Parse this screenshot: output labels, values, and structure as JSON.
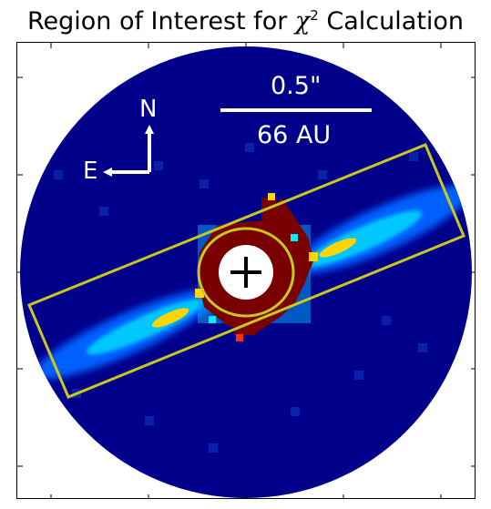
{
  "figure": {
    "title_prefix": "Region of Interest for ",
    "title_symbol": "χ",
    "title_exponent": "2",
    "title_suffix": " Calculation"
  },
  "compass": {
    "north": "N",
    "east": "E"
  },
  "scale_bar": {
    "angular": "0.5\"",
    "physical": "66 AU"
  },
  "colors": {
    "background": "#00008b",
    "disk_core": "#0072ff",
    "disk_mid": "#00d0ff",
    "disk_peak": "#ffd400",
    "inner_red": "#7a0000",
    "region_outline": "#c8c81e",
    "mask": "#ffffff",
    "marker": "#000000"
  }
}
